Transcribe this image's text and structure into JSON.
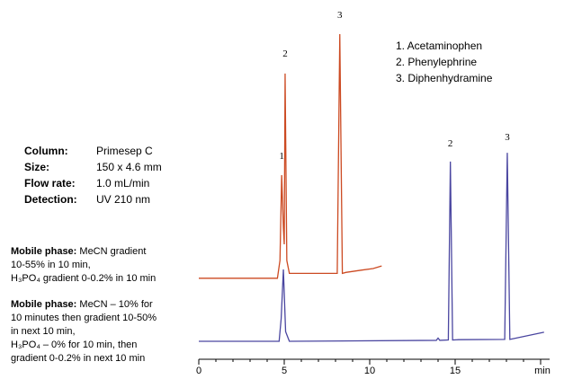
{
  "chart_data": {
    "type": "line",
    "xlim": [
      0,
      20
    ],
    "ylim": [
      0,
      100
    ],
    "xticks": [
      0,
      5,
      10,
      15,
      {
        "value": 20,
        "label": "min"
      }
    ],
    "xminorticks": [
      1,
      2,
      3,
      4,
      6,
      7,
      8,
      9,
      11,
      12,
      13,
      14,
      16,
      17,
      18,
      19
    ],
    "series": [
      {
        "color": "#cc4a22",
        "x": [
          0,
          4.6,
          4.75,
          4.85,
          4.95,
          5.0,
          5.05,
          5.15,
          5.3,
          8.1,
          8.25,
          8.4,
          8.6,
          9.5,
          10.2,
          10.7
        ],
        "values": [
          24.5,
          24.5,
          30,
          56.4,
          40,
          35,
          87.8,
          30,
          26,
          26,
          100,
          26,
          26.3,
          27,
          27.5,
          28.3
        ]
      },
      {
        "color": "#4a46a0",
        "x": [
          0,
          4.7,
          4.82,
          4.95,
          5.08,
          5.3,
          13.9,
          14.0,
          14.1,
          14.6,
          14.72,
          14.85,
          15.2,
          17.9,
          18.05,
          18.2,
          18.3,
          20.2
        ],
        "values": [
          5,
          5,
          12,
          27.2,
          8,
          5,
          5.3,
          6,
          5.3,
          5.4,
          60.6,
          5.4,
          5.5,
          5.6,
          63.3,
          5.6,
          5.7,
          7.8
        ]
      }
    ],
    "annotations": [
      {
        "text": "1",
        "x": 4.85,
        "y": 61.4
      },
      {
        "text": "2",
        "x": 5.05,
        "y": 93
      },
      {
        "text": "3",
        "x": 8.25,
        "y": 105
      },
      {
        "text": "2",
        "x": 14.72,
        "y": 65.3
      },
      {
        "text": "3",
        "x": 18.05,
        "y": 67.2
      }
    ],
    "compounds": [
      "1. Acetaminophen",
      "2. Phenylephrine",
      "3. Diphenhydramine"
    ],
    "conditions": [
      [
        "Column:",
        "Primesep  C"
      ],
      [
        "Size:",
        "150 x  4.6 mm"
      ],
      [
        "Flow rate:",
        "1.0 mL/min"
      ],
      [
        "Detection:",
        "UV  210 nm"
      ]
    ],
    "mobile_phases": [
      {
        "label": "Mobile phase:",
        "lines": [
          " MeCN  gradient",
          "10-55% in 10 min,",
          "H₃PO₄ gradient 0-0.2% in 10 min"
        ]
      },
      {
        "label": "Mobile phase:",
        "lines": [
          " MeCN – 10% for",
          "10 minutes then gradient 10-50%",
          "in next 10 min,",
          "H₃PO₄ – 0% for 10  min, then",
          "gradient 0-0.2% in next 10 min"
        ]
      }
    ]
  }
}
